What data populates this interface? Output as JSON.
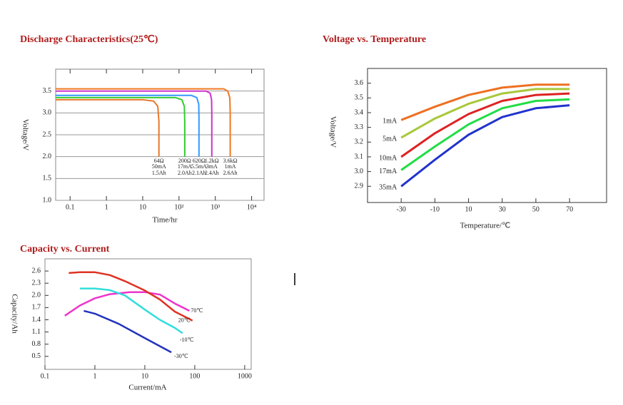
{
  "chart_data": [
    {
      "type": "line",
      "title": "Discharge  Characteristics(25℃)",
      "xlabel": "Time/hr",
      "ylabel": "Voltage/V",
      "xscale": "log",
      "xlim": [
        0.04,
        22000
      ],
      "ylim": [
        1.0,
        4.0
      ],
      "xticks": [
        0.1,
        1,
        10,
        {
          "value": 100,
          "label": "10²"
        },
        {
          "value": 1000,
          "label": "10³"
        },
        {
          "value": 10000,
          "label": "10⁴"
        }
      ],
      "yticks": [
        {
          "value": 1.0,
          "label": "1.0"
        },
        1.5,
        {
          "value": 2.0,
          "label": "2.0"
        },
        2.5,
        {
          "value": 3.0,
          "label": "3.0"
        },
        3.5
      ],
      "grid": true,
      "series": [
        {
          "name": "64Ω",
          "current": "50mA",
          "capacity": "1.5Ah",
          "color": "#e8782a",
          "x": [
            0.04,
            10,
            20,
            26,
            28,
            28
          ],
          "values": [
            3.3,
            3.3,
            3.27,
            3.15,
            2.8,
            2.0
          ]
        },
        {
          "name": "200Ω",
          "current": "17mA",
          "capacity": "2.0Ah",
          "color": "#33cc33",
          "x": [
            0.04,
            80,
            120,
            140,
            144,
            144
          ],
          "values": [
            3.35,
            3.35,
            3.3,
            3.15,
            2.8,
            2.0
          ]
        },
        {
          "name": "620Ω",
          "current": "5.5mA",
          "capacity": "2.1Ah",
          "color": "#3399ff",
          "x": [
            0.04,
            220,
            310,
            350,
            355,
            355
          ],
          "values": [
            3.4,
            3.4,
            3.35,
            3.2,
            2.9,
            2.0
          ]
        },
        {
          "name": "1.2kΩ",
          "current": "3mA",
          "capacity": "2.4Ah",
          "color": "#cc33cc",
          "x": [
            0.04,
            560,
            720,
            790,
            800,
            800
          ],
          "values": [
            3.5,
            3.5,
            3.45,
            3.3,
            3.0,
            2.0
          ]
        },
        {
          "name": "3.6kΩ",
          "current": "1mA",
          "capacity": "2.6Ah",
          "color": "#f07820",
          "x": [
            0.04,
            1700,
            2200,
            2500,
            2570,
            2570
          ],
          "values": [
            3.55,
            3.55,
            3.5,
            3.35,
            3.0,
            2.0
          ]
        }
      ]
    },
    {
      "type": "line",
      "title": "Voltage vs.  Temperature",
      "xlabel": "Temperature/℃",
      "ylabel": "Voltage/V",
      "xscale": "linear",
      "xlim": [
        -50,
        92
      ],
      "ylim": [
        2.79,
        3.7
      ],
      "xticks": [
        -30,
        -10,
        10,
        30,
        50,
        70
      ],
      "yticks": [
        2.9,
        {
          "value": 3.0,
          "label": "3.0"
        },
        3.1,
        3.2,
        3.3,
        3.4,
        3.5,
        3.6
      ],
      "grid": false,
      "series": [
        {
          "name": "1mA",
          "color": "#ee7022",
          "x": [
            -30,
            -10,
            10,
            30,
            50,
            70
          ],
          "values": [
            3.35,
            3.44,
            3.52,
            3.57,
            3.59,
            3.59
          ]
        },
        {
          "name": "5mA",
          "color": "#a8c83a",
          "x": [
            -30,
            -10,
            10,
            30,
            50,
            70
          ],
          "values": [
            3.23,
            3.36,
            3.46,
            3.53,
            3.56,
            3.56
          ]
        },
        {
          "name": "10mA",
          "color": "#dd2222",
          "x": [
            -30,
            -10,
            10,
            30,
            50,
            70
          ],
          "values": [
            3.1,
            3.26,
            3.39,
            3.48,
            3.52,
            3.53
          ]
        },
        {
          "name": "17mA",
          "color": "#22dd44",
          "x": [
            -30,
            -10,
            10,
            30,
            50,
            70
          ],
          "values": [
            3.01,
            3.17,
            3.32,
            3.43,
            3.48,
            3.49
          ]
        },
        {
          "name": "35mA",
          "color": "#2233cc",
          "x": [
            -30,
            -10,
            10,
            30,
            50,
            70
          ],
          "values": [
            2.9,
            3.08,
            3.25,
            3.37,
            3.43,
            3.45
          ]
        }
      ]
    },
    {
      "type": "line",
      "title": "Capacity  vs.  Current",
      "xlabel": "Current/mA",
      "ylabel": "Capacity/Ah",
      "xscale": "log",
      "xlim": [
        0.1,
        1350
      ],
      "ylim": [
        0.18,
        2.9
      ],
      "xticks": [
        0.1,
        1,
        10,
        100,
        1000
      ],
      "yticks": [
        0.5,
        0.8,
        1.1,
        1.4,
        1.7,
        {
          "value": 2.0,
          "label": "2.0"
        },
        2.3,
        2.6
      ],
      "grid": false,
      "series": [
        {
          "name": "70℃",
          "color": "#ee33cc",
          "x": [
            0.25,
            0.5,
            1,
            2,
            5,
            10,
            20,
            40,
            78
          ],
          "values": [
            1.5,
            1.75,
            1.93,
            2.03,
            2.08,
            2.08,
            2.02,
            1.8,
            1.62
          ]
        },
        {
          "name": "20℃",
          "color": "#dd3322",
          "x": [
            0.3,
            0.5,
            1,
            2,
            4,
            10,
            20,
            40,
            90
          ],
          "values": [
            2.55,
            2.57,
            2.57,
            2.5,
            2.35,
            2.12,
            1.9,
            1.6,
            1.38
          ]
        },
        {
          "name": "-10℃",
          "color": "#33dddd",
          "x": [
            0.5,
            1,
            2,
            4,
            10,
            20,
            40,
            57
          ],
          "values": [
            2.17,
            2.17,
            2.13,
            2.0,
            1.65,
            1.4,
            1.2,
            1.07
          ]
        },
        {
          "name": "-30℃",
          "color": "#2233bb",
          "x": [
            0.6,
            1,
            3,
            10,
            20,
            34
          ],
          "values": [
            1.62,
            1.55,
            1.3,
            0.95,
            0.75,
            0.6
          ]
        }
      ]
    }
  ]
}
